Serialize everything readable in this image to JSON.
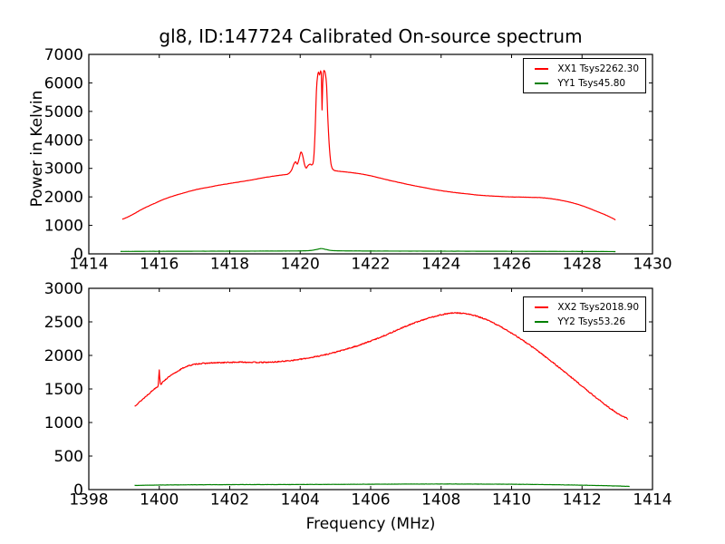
{
  "figure": {
    "title": "gl8, ID:147724 Calibrated On-source spectrum",
    "ylabel": "Power in Kelvin",
    "xlabel": "Frequency (MHz)",
    "background": "#ffffff",
    "axis_color": "#000000"
  },
  "chart_data": [
    {
      "type": "line",
      "panel": "top",
      "title": "gl8, ID:147724 Calibrated On-source spectrum",
      "ylabel": "Power in Kelvin",
      "xlabel": "",
      "xlim": [
        1414,
        1430
      ],
      "ylim": [
        0,
        7000
      ],
      "xticks": [
        1414,
        1416,
        1418,
        1420,
        1422,
        1424,
        1426,
        1428,
        1430
      ],
      "yticks": [
        0,
        1000,
        2000,
        3000,
        4000,
        5000,
        6000,
        7000
      ],
      "grid": false,
      "legend_position": "upper right",
      "series": [
        {
          "name": "XX1 Tsys2262.30",
          "color": "#ff0000",
          "points": [
            [
              1414.95,
              1215
            ],
            [
              1415.1,
              1290
            ],
            [
              1415.3,
              1420
            ],
            [
              1415.5,
              1560
            ],
            [
              1415.7,
              1680
            ],
            [
              1415.9,
              1790
            ],
            [
              1416.1,
              1900
            ],
            [
              1416.3,
              1990
            ],
            [
              1416.5,
              2070
            ],
            [
              1416.7,
              2140
            ],
            [
              1416.9,
              2210
            ],
            [
              1417.1,
              2270
            ],
            [
              1417.4,
              2340
            ],
            [
              1417.7,
              2410
            ],
            [
              1418.0,
              2470
            ],
            [
              1418.3,
              2530
            ],
            [
              1418.6,
              2590
            ],
            [
              1418.9,
              2660
            ],
            [
              1419.2,
              2720
            ],
            [
              1419.5,
              2770
            ],
            [
              1419.65,
              2800
            ],
            [
              1419.75,
              2930
            ],
            [
              1419.82,
              3150
            ],
            [
              1419.87,
              3230
            ],
            [
              1419.92,
              3150
            ],
            [
              1419.97,
              3340
            ],
            [
              1420.02,
              3570
            ],
            [
              1420.07,
              3450
            ],
            [
              1420.12,
              3150
            ],
            [
              1420.17,
              3010
            ],
            [
              1420.22,
              3100
            ],
            [
              1420.28,
              3150
            ],
            [
              1420.33,
              3120
            ],
            [
              1420.38,
              3300
            ],
            [
              1420.42,
              4200
            ],
            [
              1420.46,
              5700
            ],
            [
              1420.49,
              6200
            ],
            [
              1420.52,
              6380
            ],
            [
              1420.55,
              6280
            ],
            [
              1420.58,
              6420
            ],
            [
              1420.6,
              6350
            ],
            [
              1420.62,
              5050
            ],
            [
              1420.64,
              6000
            ],
            [
              1420.66,
              6380
            ],
            [
              1420.69,
              6420
            ],
            [
              1420.72,
              6280
            ],
            [
              1420.75,
              5900
            ],
            [
              1420.78,
              4900
            ],
            [
              1420.82,
              3900
            ],
            [
              1420.86,
              3300
            ],
            [
              1420.9,
              3030
            ],
            [
              1420.97,
              2930
            ],
            [
              1421.1,
              2900
            ],
            [
              1421.4,
              2860
            ],
            [
              1421.7,
              2810
            ],
            [
              1422.0,
              2740
            ],
            [
              1422.3,
              2650
            ],
            [
              1422.6,
              2560
            ],
            [
              1422.9,
              2480
            ],
            [
              1423.2,
              2400
            ],
            [
              1423.5,
              2330
            ],
            [
              1423.8,
              2260
            ],
            [
              1424.1,
              2200
            ],
            [
              1424.4,
              2150
            ],
            [
              1424.7,
              2110
            ],
            [
              1425.0,
              2070
            ],
            [
              1425.3,
              2040
            ],
            [
              1425.6,
              2020
            ],
            [
              1425.9,
              2000
            ],
            [
              1426.2,
              1995
            ],
            [
              1426.5,
              1985
            ],
            [
              1426.8,
              1975
            ],
            [
              1427.1,
              1940
            ],
            [
              1427.4,
              1880
            ],
            [
              1427.7,
              1800
            ],
            [
              1428.0,
              1690
            ],
            [
              1428.3,
              1550
            ],
            [
              1428.6,
              1400
            ],
            [
              1428.8,
              1290
            ],
            [
              1428.95,
              1190
            ]
          ]
        },
        {
          "name": "YY1 Tsys45.80",
          "color": "#008000",
          "points": [
            [
              1414.9,
              85
            ],
            [
              1416,
              90
            ],
            [
              1418,
              95
            ],
            [
              1419.5,
              100
            ],
            [
              1420.2,
              110
            ],
            [
              1420.45,
              150
            ],
            [
              1420.6,
              185
            ],
            [
              1420.75,
              150
            ],
            [
              1421,
              110
            ],
            [
              1422,
              100
            ],
            [
              1424,
              95
            ],
            [
              1426,
              90
            ],
            [
              1428,
              85
            ],
            [
              1428.95,
              80
            ]
          ]
        }
      ]
    },
    {
      "type": "line",
      "panel": "bottom",
      "title": "",
      "ylabel": "",
      "xlabel": "Frequency (MHz)",
      "xlim": [
        1398,
        1414
      ],
      "ylim": [
        0,
        3000
      ],
      "xticks": [
        1398,
        1400,
        1402,
        1404,
        1406,
        1408,
        1410,
        1412,
        1414
      ],
      "yticks": [
        0,
        500,
        1000,
        1500,
        2000,
        2500,
        3000
      ],
      "grid": false,
      "legend_position": "upper right",
      "series": [
        {
          "name": "XX2 Tsys2018.90",
          "color": "#ff0000",
          "points": [
            [
              1399.3,
              1245
            ],
            [
              1399.45,
              1310
            ],
            [
              1399.6,
              1380
            ],
            [
              1399.75,
              1450
            ],
            [
              1399.9,
              1520
            ],
            [
              1399.97,
              1560
            ],
            [
              1400.0,
              1790
            ],
            [
              1400.03,
              1580
            ],
            [
              1400.15,
              1630
            ],
            [
              1400.3,
              1690
            ],
            [
              1400.45,
              1740
            ],
            [
              1400.6,
              1790
            ],
            [
              1400.75,
              1830
            ],
            [
              1400.9,
              1855
            ],
            [
              1401.1,
              1875
            ],
            [
              1401.4,
              1885
            ],
            [
              1401.7,
              1892
            ],
            [
              1402.0,
              1896
            ],
            [
              1402.3,
              1900
            ],
            [
              1402.6,
              1898
            ],
            [
              1402.9,
              1896
            ],
            [
              1403.2,
              1900
            ],
            [
              1403.5,
              1912
            ],
            [
              1403.8,
              1928
            ],
            [
              1404.1,
              1950
            ],
            [
              1404.4,
              1978
            ],
            [
              1404.7,
              2010
            ],
            [
              1405.0,
              2048
            ],
            [
              1405.3,
              2092
            ],
            [
              1405.6,
              2140
            ],
            [
              1405.9,
              2195
            ],
            [
              1406.2,
              2255
            ],
            [
              1406.5,
              2320
            ],
            [
              1406.8,
              2390
            ],
            [
              1407.1,
              2455
            ],
            [
              1407.4,
              2515
            ],
            [
              1407.7,
              2565
            ],
            [
              1408.0,
              2605
            ],
            [
              1408.3,
              2630
            ],
            [
              1408.6,
              2628
            ],
            [
              1408.9,
              2600
            ],
            [
              1409.2,
              2550
            ],
            [
              1409.5,
              2480
            ],
            [
              1409.8,
              2395
            ],
            [
              1410.1,
              2300
            ],
            [
              1410.4,
              2195
            ],
            [
              1410.7,
              2085
            ],
            [
              1411.0,
              1965
            ],
            [
              1411.3,
              1840
            ],
            [
              1411.6,
              1715
            ],
            [
              1411.9,
              1585
            ],
            [
              1412.2,
              1455
            ],
            [
              1412.5,
              1330
            ],
            [
              1412.8,
              1210
            ],
            [
              1413.05,
              1120
            ],
            [
              1413.3,
              1055
            ]
          ]
        },
        {
          "name": "YY2 Tsys53.26",
          "color": "#008000",
          "points": [
            [
              1399.3,
              62
            ],
            [
              1400,
              68
            ],
            [
              1401,
              72
            ],
            [
              1402,
              74
            ],
            [
              1403,
              75
            ],
            [
              1404,
              76
            ],
            [
              1405,
              78
            ],
            [
              1406,
              80
            ],
            [
              1407,
              82
            ],
            [
              1408,
              83
            ],
            [
              1409,
              82
            ],
            [
              1410,
              80
            ],
            [
              1411,
              74
            ],
            [
              1412,
              66
            ],
            [
              1412.7,
              58
            ],
            [
              1413.35,
              48
            ]
          ]
        }
      ]
    }
  ]
}
